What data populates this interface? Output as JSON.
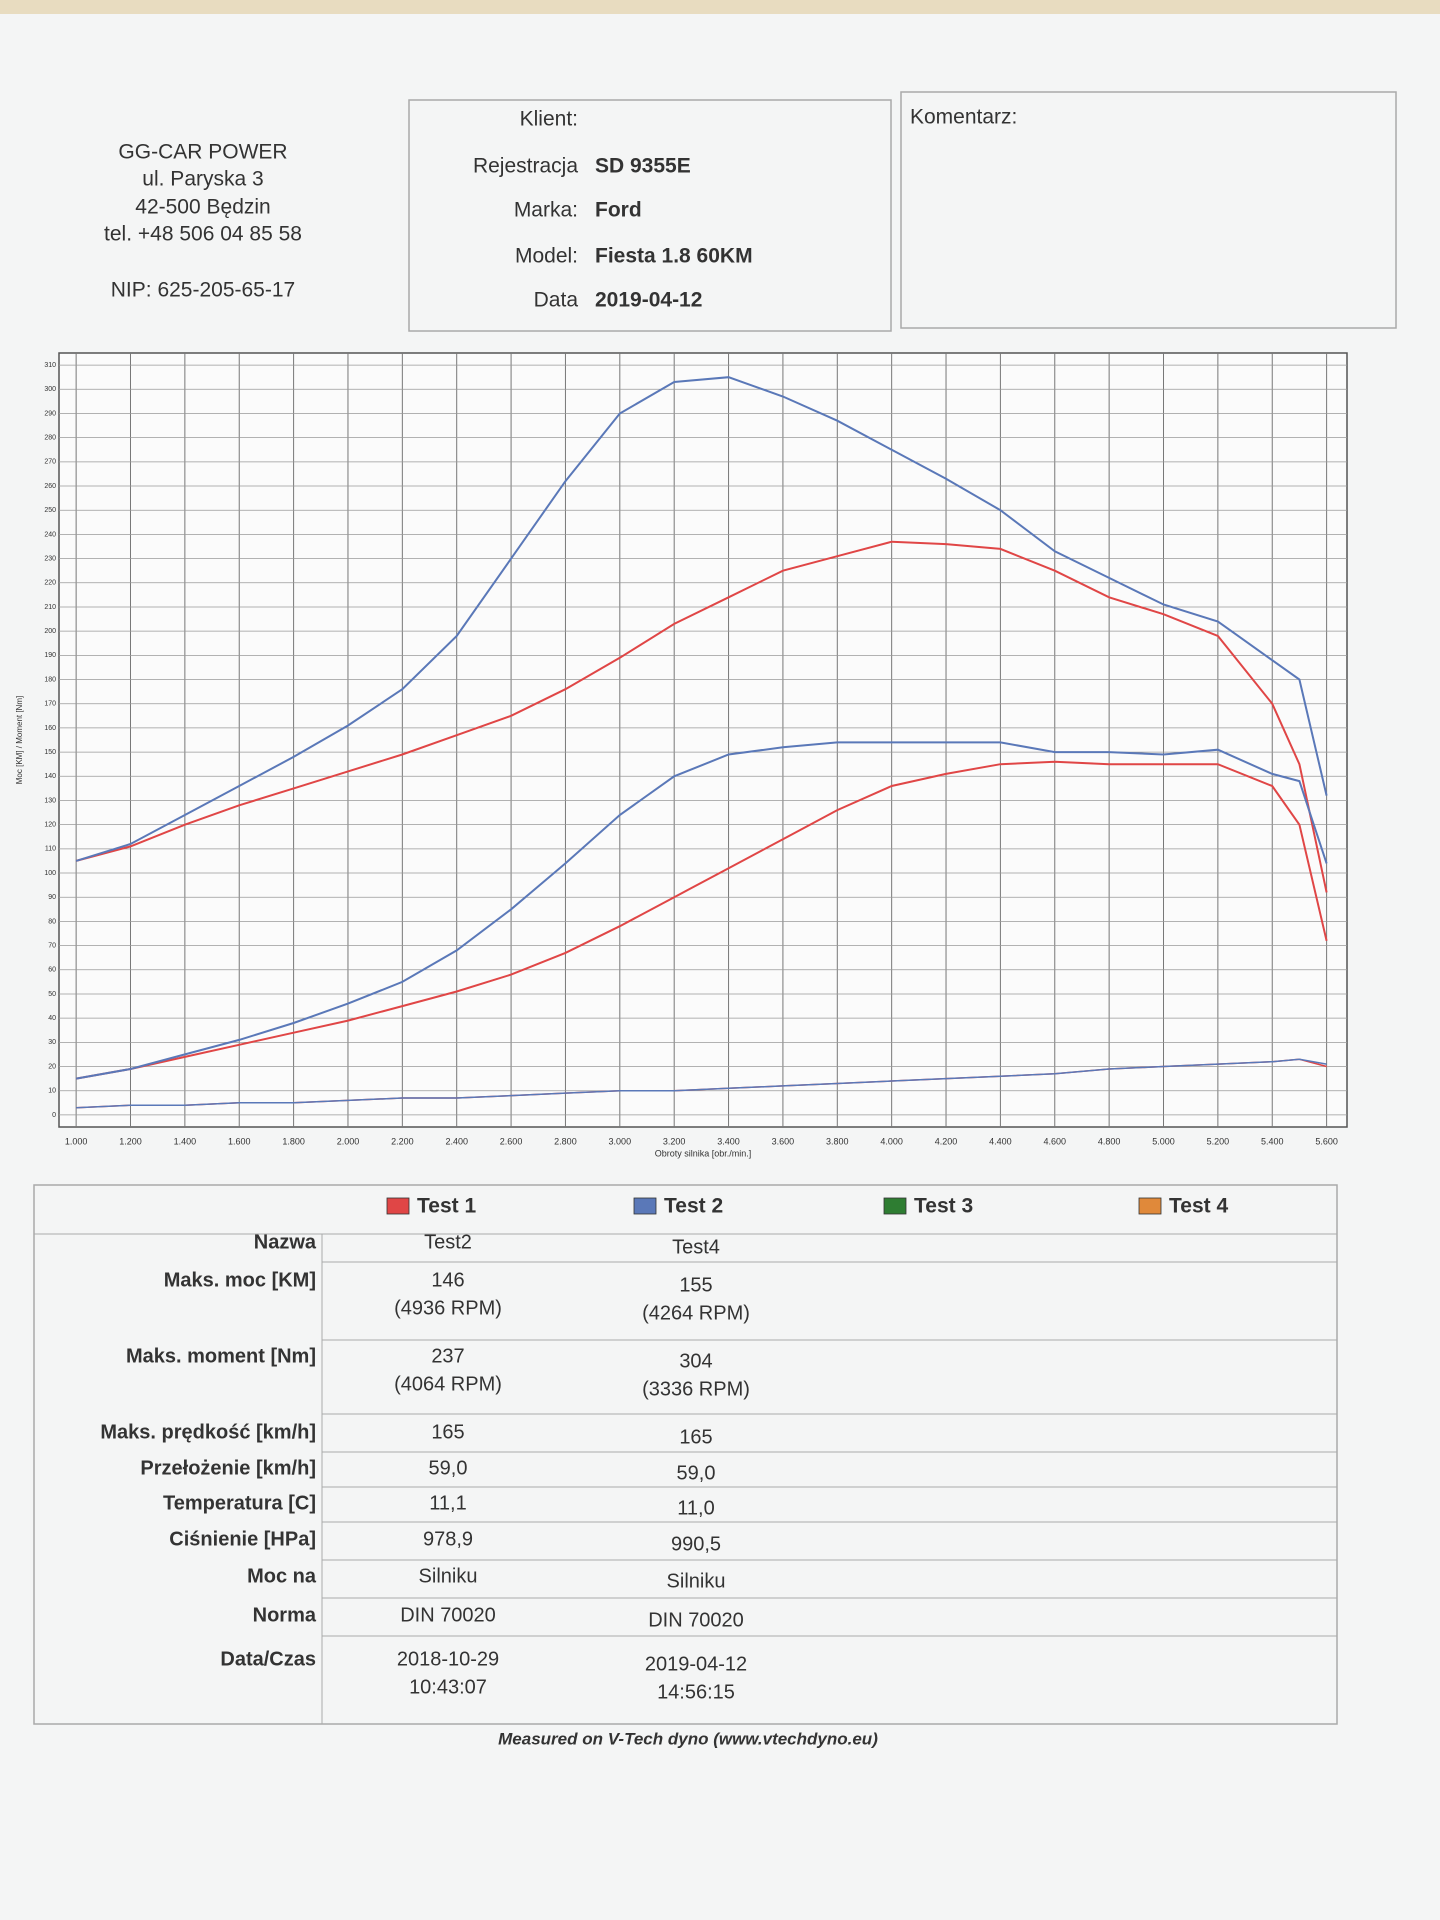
{
  "company": {
    "name": "GG-CAR POWER",
    "street": "ul. Paryska 3",
    "city": "42-500 Będzin",
    "phone": "tel. +48 506 04 85 58",
    "nip": "NIP: 625-205-65-17"
  },
  "vehicle": [
    {
      "label": "Klient:"
    },
    {
      "label": "Rejestracja",
      "value": "SD 9355E"
    },
    {
      "label": "Marka:",
      "value": "Ford"
    },
    {
      "label": "Model:",
      "value": "Fiesta 1.8 60KM"
    },
    {
      "label": "Data",
      "value": "2019-04-12"
    }
  ],
  "comment": {
    "label": "Komentarz:"
  },
  "chart_data": {
    "type": "line",
    "x_label": "Obroty silnika [obr./min.]",
    "y_label": "Moc [KM] / Moment [Nm]",
    "x": [
      1000,
      1200,
      1400,
      1600,
      1800,
      2000,
      2200,
      2400,
      2600,
      2800,
      3000,
      3200,
      3400,
      3600,
      3800,
      4000,
      4200,
      4400,
      4600,
      4800,
      5000,
      5200,
      5400,
      5500,
      5600
    ],
    "series": [
      {
        "name": "Test 1",
        "color": "#e04646",
        "torque": [
          105,
          111,
          120,
          128,
          135,
          142,
          149,
          157,
          165,
          176,
          189,
          203,
          214,
          225,
          231,
          237,
          236,
          234,
          225,
          214,
          207,
          198,
          170,
          145,
          92
        ],
        "power": [
          15,
          19,
          24,
          29,
          34,
          39,
          45,
          51,
          58,
          67,
          78,
          90,
          102,
          114,
          126,
          136,
          141,
          145,
          146,
          145,
          145,
          145,
          136,
          120,
          72
        ],
        "loss": [
          3,
          4,
          4,
          5,
          5,
          6,
          7,
          7,
          8,
          9,
          10,
          10,
          11,
          12,
          13,
          14,
          15,
          16,
          17,
          19,
          20,
          21,
          22,
          23,
          20
        ]
      },
      {
        "name": "Test 2",
        "color": "#5a78b8",
        "torque": [
          105,
          112,
          124,
          136,
          148,
          161,
          176,
          198,
          230,
          262,
          290,
          303,
          305,
          297,
          287,
          275,
          263,
          250,
          233,
          222,
          211,
          204,
          188,
          180,
          132
        ],
        "power": [
          15,
          19,
          25,
          31,
          38,
          46,
          55,
          68,
          85,
          104,
          124,
          140,
          149,
          152,
          154,
          154,
          154,
          154,
          150,
          150,
          149,
          151,
          141,
          138,
          104
        ],
        "loss": [
          3,
          4,
          4,
          5,
          5,
          6,
          7,
          7,
          8,
          9,
          10,
          10,
          11,
          12,
          13,
          14,
          15,
          16,
          17,
          19,
          20,
          21,
          22,
          23,
          21
        ]
      },
      {
        "name": "Test 3",
        "color": "#2e7d32"
      },
      {
        "name": "Test 4",
        "color": "#e0893a"
      }
    ],
    "xlim": [
      937,
      5675
    ],
    "ylim": [
      -5,
      315
    ],
    "xticks": [
      {
        "value": 1000,
        "label": "1.000"
      },
      {
        "value": 1200,
        "label": "1.200"
      },
      {
        "value": 1400,
        "label": "1.400"
      },
      {
        "value": 1600,
        "label": "1.600"
      },
      {
        "value": 1800,
        "label": "1.800"
      },
      {
        "value": 2000,
        "label": "2.000"
      },
      {
        "value": 2200,
        "label": "2.200"
      },
      {
        "value": 2400,
        "label": "2.400"
      },
      {
        "value": 2600,
        "label": "2.600"
      },
      {
        "value": 2800,
        "label": "2.800"
      },
      {
        "value": 3000,
        "label": "3.000"
      },
      {
        "value": 3200,
        "label": "3.200"
      },
      {
        "value": 3400,
        "label": "3.400"
      },
      {
        "value": 3600,
        "label": "3.600"
      },
      {
        "value": 3800,
        "label": "3.800"
      },
      {
        "value": 4000,
        "label": "4.000"
      },
      {
        "value": 4200,
        "label": "4.200"
      },
      {
        "value": 4400,
        "label": "4.400"
      },
      {
        "value": 4600,
        "label": "4.600"
      },
      {
        "value": 4800,
        "label": "4.800"
      },
      {
        "value": 5000,
        "label": "5.000"
      },
      {
        "value": 5200,
        "label": "5.200"
      },
      {
        "value": 5400,
        "label": "5.400"
      },
      {
        "value": 5600,
        "label": "5.600"
      }
    ],
    "yticks": [
      0,
      10,
      20,
      30,
      40,
      50,
      60,
      70,
      80,
      90,
      100,
      110,
      120,
      130,
      140,
      150,
      160,
      170,
      180,
      190,
      200,
      210,
      220,
      230,
      240,
      250,
      260,
      270,
      280,
      290,
      300,
      310
    ],
    "grid": true
  },
  "table": {
    "rows": [
      {
        "label": "Nazwa",
        "cells": [
          [
            "Test2"
          ],
          [
            "Test4"
          ]
        ]
      },
      {
        "label": "Maks. moc [KM]",
        "cells": [
          [
            "146",
            "(4936 RPM)"
          ],
          [
            "155",
            "(4264 RPM)"
          ]
        ]
      },
      {
        "label": "Maks. moment [Nm]",
        "cells": [
          [
            "237",
            "(4064 RPM)"
          ],
          [
            "304",
            "(3336 RPM)"
          ]
        ]
      },
      {
        "label": "Maks. prędkość [km/h]",
        "cells": [
          [
            "165"
          ],
          [
            "165"
          ]
        ]
      },
      {
        "label": "Przełożenie [km/h]",
        "cells": [
          [
            "59,0"
          ],
          [
            "59,0"
          ]
        ]
      },
      {
        "label": "Temperatura [C]",
        "cells": [
          [
            "11,1"
          ],
          [
            "11,0"
          ]
        ]
      },
      {
        "label": "Ciśnienie [HPa]",
        "cells": [
          [
            "978,9"
          ],
          [
            "990,5"
          ]
        ]
      },
      {
        "label": "Moc na",
        "cells": [
          [
            "Silniku"
          ],
          [
            "Silniku"
          ]
        ]
      },
      {
        "label": "Norma",
        "cells": [
          [
            "DIN 70020"
          ],
          [
            "DIN 70020"
          ]
        ]
      },
      {
        "label": "Data/Czas",
        "cells": [
          [
            "2018-10-29",
            "10:43:07"
          ],
          [
            "2019-04-12",
            "14:56:15"
          ]
        ]
      }
    ]
  },
  "footer": "Measured on V-Tech dyno (www.vtechdyno.eu)"
}
